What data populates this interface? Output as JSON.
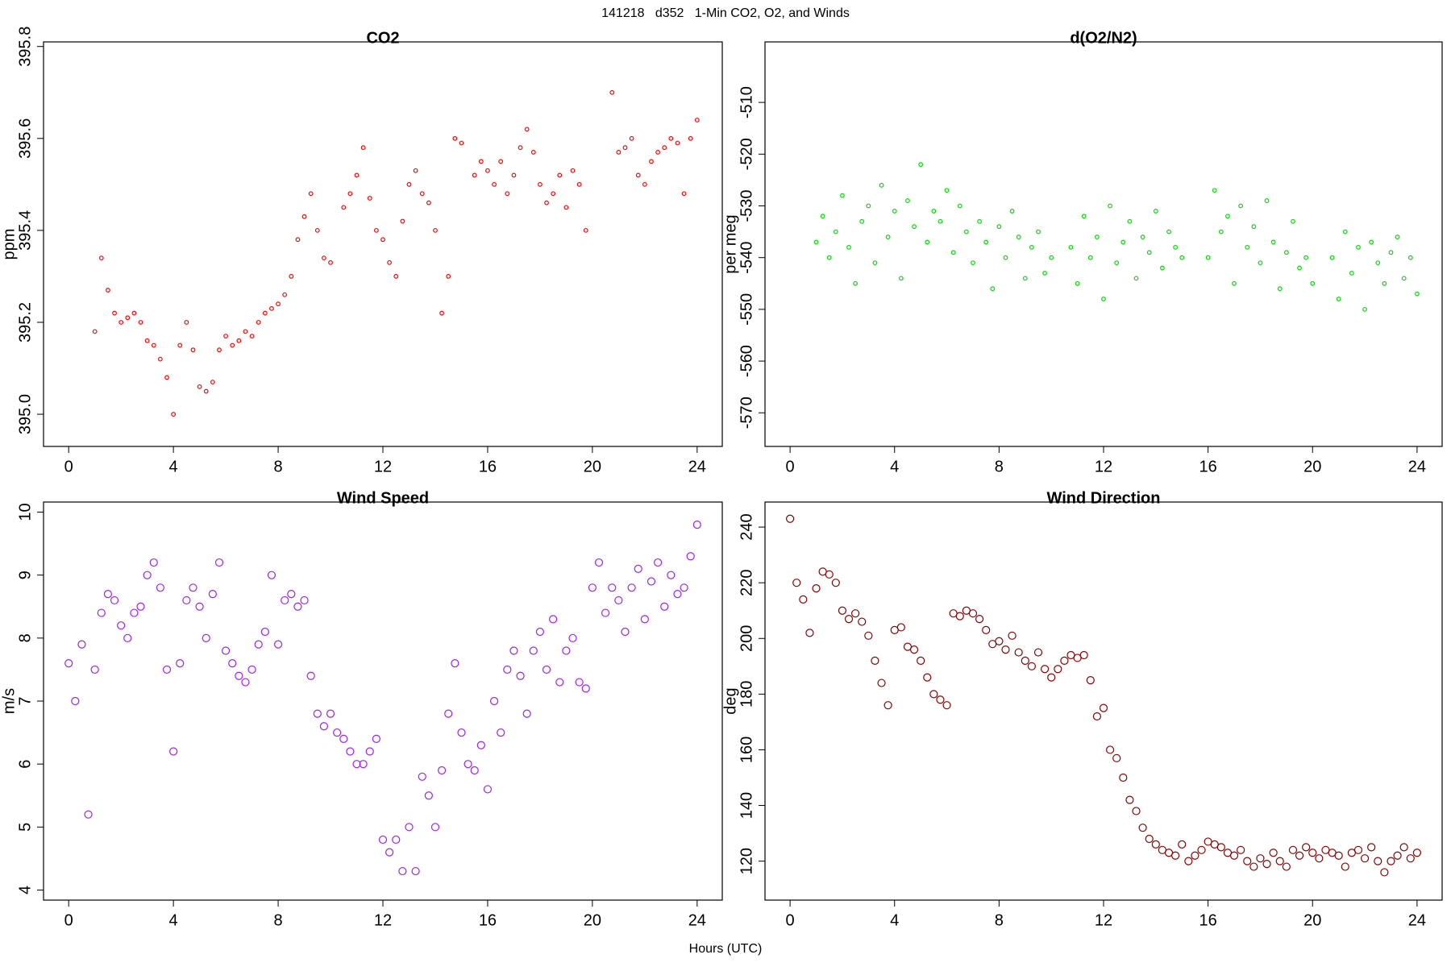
{
  "title": "141218   d352   1-Min CO2, O2, and Winds",
  "xlabel": "Hours (UTC)",
  "chart_data": [
    {
      "type": "scatter",
      "title": "CO2",
      "ylabel": "ppm",
      "color": "#ff0000",
      "marker_size": 2.3,
      "x": [
        1,
        1.25,
        1.5,
        1.75,
        2,
        2.25,
        2.5,
        2.75,
        3,
        3.25,
        3.5,
        3.75,
        4,
        4.25,
        4.5,
        4.75,
        5,
        5.25,
        5.5,
        5.75,
        6,
        6.25,
        6.5,
        6.75,
        7,
        7.25,
        7.5,
        7.75,
        8,
        8.25,
        8.5,
        8.75,
        9,
        9.25,
        9.5,
        9.75,
        10,
        10.5,
        10.75,
        11,
        11.25,
        11.5,
        11.75,
        12,
        12.25,
        12.5,
        12.75,
        13,
        13.25,
        13.5,
        13.75,
        14,
        14.25,
        14.5,
        14.75,
        15,
        15.5,
        15.75,
        16,
        16.25,
        16.5,
        16.75,
        17,
        17.25,
        17.5,
        17.75,
        18,
        18.25,
        18.5,
        18.75,
        19,
        19.25,
        19.5,
        19.75,
        20.75,
        21,
        21.25,
        21.5,
        21.75,
        22,
        22.25,
        22.5,
        22.75,
        23,
        23.25,
        23.5,
        23.75,
        24
      ],
      "values": [
        395.18,
        395.34,
        395.27,
        395.22,
        395.2,
        395.21,
        395.22,
        395.2,
        395.16,
        395.15,
        395.12,
        395.08,
        395,
        395.15,
        395.2,
        395.14,
        395.06,
        395.05,
        395.07,
        395.14,
        395.17,
        395.15,
        395.16,
        395.18,
        395.17,
        395.2,
        395.22,
        395.23,
        395.24,
        395.26,
        395.3,
        395.38,
        395.43,
        395.48,
        395.4,
        395.34,
        395.33,
        395.45,
        395.48,
        395.52,
        395.58,
        395.47,
        395.4,
        395.38,
        395.33,
        395.3,
        395.42,
        395.5,
        395.53,
        395.48,
        395.46,
        395.4,
        395.22,
        395.3,
        395.6,
        395.59,
        395.52,
        395.55,
        395.53,
        395.5,
        395.55,
        395.48,
        395.52,
        395.58,
        395.62,
        395.57,
        395.5,
        395.46,
        395.48,
        395.52,
        395.45,
        395.53,
        395.5,
        395.4,
        395.7,
        395.57,
        395.58,
        395.6,
        395.52,
        395.5,
        395.55,
        395.57,
        395.58,
        395.6,
        395.59,
        395.48,
        395.6,
        395.64
      ],
      "xlim": [
        -0.96,
        24.96
      ],
      "xticks": [
        0,
        4,
        8,
        12,
        16,
        20,
        24
      ],
      "ylim": [
        394.93,
        395.81
      ],
      "yticks": [
        {
          "value": 395,
          "label": "395.0"
        },
        395.2,
        395.4,
        395.6,
        395.8
      ]
    },
    {
      "type": "scatter",
      "title": "d(O2/N2)",
      "ylabel": "per meg",
      "color": "#00dd00",
      "marker_size": 2.3,
      "x": [
        1,
        1.25,
        1.5,
        1.75,
        2,
        2.25,
        2.5,
        2.75,
        3,
        3.25,
        3.5,
        3.75,
        4,
        4.25,
        4.5,
        4.75,
        5,
        5.25,
        5.5,
        5.75,
        6,
        6.25,
        6.5,
        6.75,
        7,
        7.25,
        7.5,
        7.75,
        8,
        8.25,
        8.5,
        8.75,
        9,
        9.25,
        9.5,
        9.75,
        10,
        10.75,
        11,
        11.25,
        11.5,
        11.75,
        12,
        12.25,
        12.5,
        12.75,
        13,
        13.25,
        13.5,
        13.75,
        14,
        14.25,
        14.5,
        14.75,
        15,
        16,
        16.25,
        16.5,
        16.75,
        17,
        17.25,
        17.5,
        17.75,
        18,
        18.25,
        18.5,
        18.75,
        19,
        19.25,
        19.5,
        19.75,
        20,
        20.75,
        21,
        21.25,
        21.5,
        21.75,
        22,
        22.25,
        22.5,
        22.75,
        23,
        23.25,
        23.5,
        23.75,
        24
      ],
      "values": [
        -537,
        -532,
        -540,
        -535,
        -528,
        -538,
        -545,
        -533,
        -530,
        -541,
        -526,
        -536,
        -531,
        -544,
        -529,
        -534,
        -522,
        -537,
        -531,
        -533,
        -527,
        -539,
        -530,
        -535,
        -541,
        -533,
        -537,
        -546,
        -534,
        -540,
        -531,
        -536,
        -544,
        -538,
        -535,
        -543,
        -540,
        -538,
        -545,
        -532,
        -540,
        -536,
        -548,
        -530,
        -541,
        -537,
        -533,
        -544,
        -536,
        -539,
        -531,
        -542,
        -535,
        -538,
        -540,
        -540,
        -527,
        -535,
        -532,
        -545,
        -530,
        -538,
        -534,
        -541,
        -529,
        -537,
        -546,
        -539,
        -533,
        -542,
        -540,
        -545,
        -540,
        -548,
        -535,
        -543,
        -538,
        -550,
        -537,
        -541,
        -545,
        -539,
        -536,
        -544,
        -540,
        -547
      ],
      "xlim": [
        -0.96,
        24.96
      ],
      "xticks": [
        0,
        4,
        8,
        12,
        16,
        20,
        24
      ],
      "ylim": [
        -576.5,
        -498.3
      ],
      "yticks": [
        -570,
        -560,
        -550,
        -540,
        -530,
        -520,
        -510
      ]
    },
    {
      "type": "scatter",
      "title": "Wind Speed",
      "ylabel": "m/s",
      "color": "#a020f0",
      "marker_size": 4.5,
      "x": [
        0,
        0.25,
        0.5,
        0.75,
        1,
        1.25,
        1.5,
        1.75,
        2,
        2.25,
        2.5,
        2.75,
        3,
        3.25,
        3.5,
        3.75,
        4,
        4.25,
        4.5,
        4.75,
        5,
        5.25,
        5.5,
        5.75,
        6,
        6.25,
        6.5,
        6.75,
        7,
        7.25,
        7.5,
        7.75,
        8,
        8.25,
        8.5,
        8.75,
        9,
        9.25,
        9.5,
        9.75,
        10,
        10.25,
        10.5,
        10.75,
        11,
        11.25,
        11.5,
        11.75,
        12,
        12.25,
        12.5,
        12.75,
        13,
        13.25,
        13.5,
        13.75,
        14,
        14.25,
        14.5,
        14.75,
        15,
        15.25,
        15.5,
        15.75,
        16,
        16.25,
        16.5,
        16.75,
        17,
        17.25,
        17.5,
        17.75,
        18,
        18.25,
        18.5,
        18.75,
        19,
        19.25,
        19.5,
        19.75,
        20,
        20.25,
        20.5,
        20.75,
        21,
        21.25,
        21.5,
        21.75,
        22,
        22.25,
        22.5,
        22.75,
        23,
        23.25,
        23.5,
        23.75,
        24
      ],
      "values": [
        7.6,
        7,
        7.9,
        5.2,
        7.5,
        8.4,
        8.7,
        8.6,
        8.2,
        8,
        8.4,
        8.5,
        9,
        9.2,
        8.8,
        7.5,
        6.2,
        7.6,
        8.6,
        8.8,
        8.5,
        8,
        8.7,
        9.2,
        7.8,
        7.6,
        7.4,
        7.3,
        7.5,
        7.9,
        8.1,
        9,
        7.9,
        8.6,
        8.7,
        8.5,
        8.6,
        7.4,
        6.8,
        6.6,
        6.8,
        6.5,
        6.4,
        6.2,
        6,
        6,
        6.2,
        6.4,
        4.8,
        4.6,
        4.8,
        4.3,
        5,
        4.3,
        5.8,
        5.5,
        5,
        5.9,
        6.8,
        7.6,
        6.5,
        6,
        5.9,
        6.3,
        5.6,
        7,
        6.5,
        7.5,
        7.8,
        7.4,
        6.8,
        7.8,
        8.1,
        7.5,
        8.3,
        7.3,
        7.8,
        8,
        7.3,
        7.2,
        8.8,
        9.2,
        8.4,
        8.8,
        8.6,
        8.1,
        8.8,
        9.1,
        8.3,
        8.9,
        9.2,
        8.5,
        9,
        8.7,
        8.8,
        9.3,
        9.8
      ],
      "xlim": [
        -0.96,
        24.96
      ],
      "xticks": [
        0,
        4,
        8,
        12,
        16,
        20,
        24
      ],
      "ylim": [
        3.84,
        10.16
      ],
      "yticks": [
        4,
        5,
        6,
        7,
        8,
        9,
        10
      ]
    },
    {
      "type": "scatter",
      "title": "Wind Direction",
      "ylabel": "deg",
      "color": "#8b0000",
      "marker_size": 4.5,
      "x": [
        0,
        0.25,
        0.5,
        0.75,
        1,
        1.25,
        1.5,
        1.75,
        2,
        2.25,
        2.5,
        2.75,
        3,
        3.25,
        3.5,
        3.75,
        4,
        4.25,
        4.5,
        4.75,
        5,
        5.25,
        5.5,
        5.75,
        6,
        6.25,
        6.5,
        6.75,
        7,
        7.25,
        7.5,
        7.75,
        8,
        8.25,
        8.5,
        8.75,
        9,
        9.25,
        9.5,
        9.75,
        10,
        10.25,
        10.5,
        10.75,
        11,
        11.25,
        11.5,
        11.75,
        12,
        12.25,
        12.5,
        12.75,
        13,
        13.25,
        13.5,
        13.75,
        14,
        14.25,
        14.5,
        14.75,
        15,
        15.25,
        15.5,
        15.75,
        16,
        16.25,
        16.5,
        16.75,
        17,
        17.25,
        17.5,
        17.75,
        18,
        18.25,
        18.5,
        18.75,
        19,
        19.25,
        19.5,
        19.75,
        20,
        20.25,
        20.5,
        20.75,
        21,
        21.25,
        21.5,
        21.75,
        22,
        22.25,
        22.5,
        22.75,
        23,
        23.25,
        23.5,
        23.75,
        24
      ],
      "values": [
        243,
        220,
        214,
        202,
        218,
        224,
        223,
        220,
        210,
        207,
        209,
        206,
        201,
        192,
        184,
        176,
        203,
        204,
        197,
        196,
        192,
        186,
        180,
        178,
        176,
        209,
        208,
        210,
        209,
        207,
        203,
        198,
        199,
        196,
        201,
        195,
        192,
        190,
        195,
        189,
        186,
        189,
        192,
        194,
        193,
        194,
        185,
        172,
        175,
        160,
        157,
        150,
        142,
        138,
        132,
        128,
        126,
        124,
        123,
        122,
        126,
        120,
        122,
        124,
        127,
        126,
        125,
        123,
        122,
        124,
        120,
        118,
        121,
        119,
        123,
        120,
        118,
        124,
        122,
        125,
        123,
        121,
        124,
        123,
        122,
        118,
        123,
        124,
        121,
        125,
        120,
        116,
        120,
        122,
        125,
        121,
        123
      ],
      "xlim": [
        -0.96,
        24.96
      ],
      "xticks": [
        0,
        4,
        8,
        12,
        16,
        20,
        24
      ],
      "ylim": [
        106,
        249
      ],
      "yticks": [
        120,
        140,
        160,
        180,
        200,
        220,
        240
      ]
    }
  ]
}
